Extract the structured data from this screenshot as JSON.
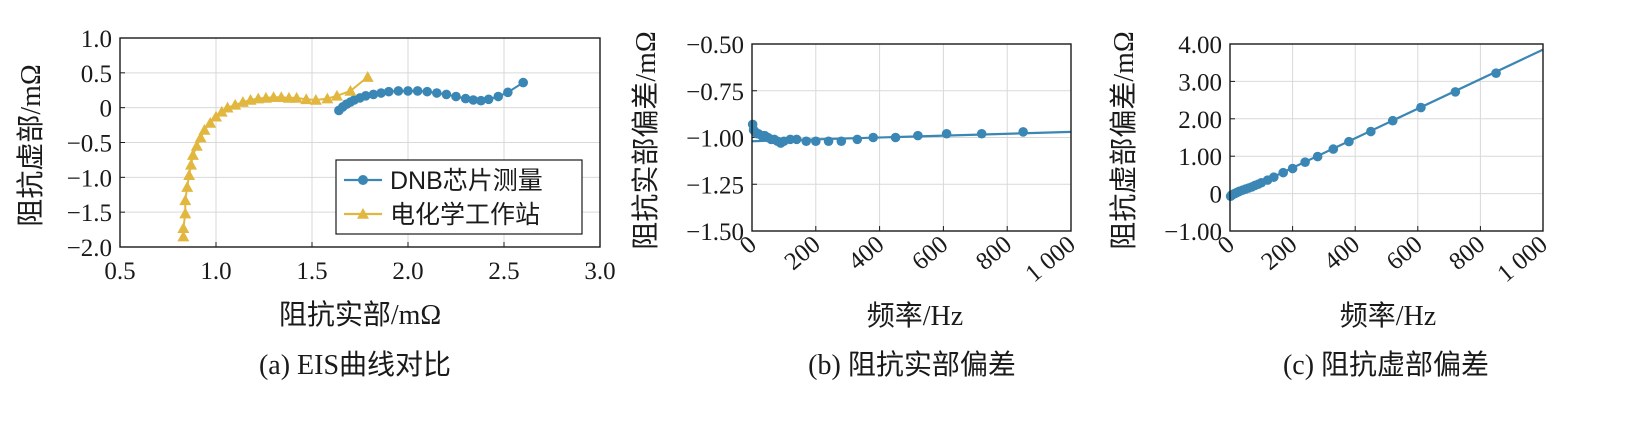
{
  "colors": {
    "blue": "#3a86b5",
    "gold": "#e2b740",
    "line_blue": "#3a86b5"
  },
  "chart_data": [
    {
      "type": "scatter",
      "caption": "(a) EIS曲线对比",
      "xlabel": "阻抗实部/mΩ",
      "ylabel": "阻抗虚部/mΩ",
      "xlim": [
        0.5,
        3.0
      ],
      "ylim": [
        -2.0,
        1.0
      ],
      "xticks": [
        0.5,
        1.0,
        1.5,
        2.0,
        2.5,
        3.0
      ],
      "xtick_labels": [
        "0.5",
        "1.0",
        "1.5",
        "2.0",
        "2.5",
        "3.0"
      ],
      "yticks": [
        1.0,
        0.5,
        0,
        -0.5,
        -1.0,
        -1.5,
        -2.0
      ],
      "ytick_labels": [
        "1.0",
        "0.5",
        "0",
        "−0.5",
        "−1.0",
        "−1.5",
        "−2.0"
      ],
      "grid": true,
      "legend": "bottom-right",
      "series": [
        {
          "name": "DNB芯片测量",
          "marker": "circle",
          "color": "#3a86b5",
          "x": [
            1.64,
            1.66,
            1.68,
            1.7,
            1.72,
            1.75,
            1.78,
            1.82,
            1.86,
            1.9,
            1.95,
            2.0,
            2.05,
            2.1,
            2.15,
            2.2,
            2.25,
            2.3,
            2.34,
            2.38,
            2.42,
            2.47,
            2.52,
            2.6
          ],
          "y": [
            -0.04,
            0.01,
            0.05,
            0.08,
            0.11,
            0.14,
            0.17,
            0.19,
            0.21,
            0.23,
            0.24,
            0.24,
            0.24,
            0.23,
            0.21,
            0.19,
            0.16,
            0.13,
            0.11,
            0.1,
            0.12,
            0.16,
            0.22,
            0.36
          ]
        },
        {
          "name": "电化学工作站",
          "marker": "triangle",
          "color": "#e2b740",
          "x": [
            0.83,
            0.83,
            0.84,
            0.84,
            0.85,
            0.86,
            0.87,
            0.88,
            0.9,
            0.92,
            0.94,
            0.97,
            1.0,
            1.03,
            1.06,
            1.1,
            1.14,
            1.18,
            1.22,
            1.26,
            1.3,
            1.34,
            1.38,
            1.42,
            1.47,
            1.52,
            1.58,
            1.63,
            1.7,
            1.79
          ],
          "y": [
            -1.85,
            -1.73,
            -1.52,
            -1.33,
            -1.14,
            -0.97,
            -0.82,
            -0.68,
            -0.55,
            -0.43,
            -0.32,
            -0.22,
            -0.13,
            -0.06,
            0.0,
            0.04,
            0.08,
            0.11,
            0.13,
            0.14,
            0.15,
            0.15,
            0.14,
            0.14,
            0.12,
            0.11,
            0.13,
            0.17,
            0.24,
            0.44
          ]
        }
      ]
    },
    {
      "type": "line",
      "caption": "(b) 阻抗实部偏差",
      "xlabel": "频率/Hz",
      "ylabel": "阻抗实部偏差/mΩ",
      "xlim": [
        0,
        1000
      ],
      "ylim": [
        -1.5,
        -0.5
      ],
      "xticks": [
        0,
        200,
        400,
        600,
        800,
        1000
      ],
      "xtick_labels": [
        "0",
        "200",
        "400",
        "600",
        "800",
        "1 000"
      ],
      "yticks": [
        -0.5,
        -0.75,
        -1.0,
        -1.25,
        -1.5
      ],
      "ytick_labels": [
        "−0.50",
        "−0.75",
        "−1.00",
        "−1.25",
        "−1.50"
      ],
      "grid": true,
      "fit_line": {
        "x": [
          0,
          1000
        ],
        "y": [
          -1.02,
          -0.97
        ]
      },
      "series": [
        {
          "marker": "circle",
          "color": "#3a86b5",
          "x": [
            2,
            5,
            10,
            15,
            20,
            30,
            40,
            50,
            60,
            70,
            80,
            90,
            100,
            120,
            140,
            170,
            200,
            240,
            280,
            330,
            380,
            450,
            520,
            610,
            720,
            850
          ],
          "y": [
            -0.93,
            -0.96,
            -0.97,
            -0.98,
            -0.98,
            -0.99,
            -0.99,
            -1.0,
            -1.01,
            -1.01,
            -1.02,
            -1.03,
            -1.02,
            -1.01,
            -1.01,
            -1.02,
            -1.02,
            -1.02,
            -1.02,
            -1.01,
            -1.0,
            -1.0,
            -0.99,
            -0.98,
            -0.98,
            -0.97
          ]
        }
      ]
    },
    {
      "type": "line",
      "caption": "(c) 阻抗虚部偏差",
      "xlabel": "频率/Hz",
      "ylabel": "阻抗虚部偏差/mΩ",
      "xlim": [
        0,
        1000
      ],
      "ylim": [
        -1.0,
        4.0
      ],
      "xticks": [
        0,
        200,
        400,
        600,
        800,
        1000
      ],
      "xtick_labels": [
        "0",
        "200",
        "400",
        "600",
        "800",
        "1 000"
      ],
      "yticks": [
        4.0,
        3.0,
        2.0,
        1.0,
        0,
        -1.0
      ],
      "ytick_labels": [
        "4.00",
        "3.00",
        "2.00",
        "1.00",
        "0",
        "−1.00"
      ],
      "grid": true,
      "fit_line": {
        "x": [
          0,
          1000
        ],
        "y": [
          -0.1,
          3.85
        ]
      },
      "series": [
        {
          "marker": "circle",
          "color": "#3a86b5",
          "x": [
            2,
            5,
            10,
            15,
            20,
            25,
            30,
            40,
            50,
            60,
            70,
            80,
            90,
            100,
            120,
            140,
            170,
            200,
            240,
            280,
            330,
            380,
            450,
            520,
            610,
            720,
            850
          ],
          "y": [
            -0.07,
            -0.04,
            -0.02,
            0.0,
            0.02,
            0.04,
            0.06,
            0.09,
            0.12,
            0.15,
            0.18,
            0.22,
            0.25,
            0.29,
            0.36,
            0.44,
            0.56,
            0.67,
            0.84,
            0.99,
            1.19,
            1.39,
            1.66,
            1.95,
            2.3,
            2.72,
            3.22
          ]
        }
      ]
    }
  ]
}
